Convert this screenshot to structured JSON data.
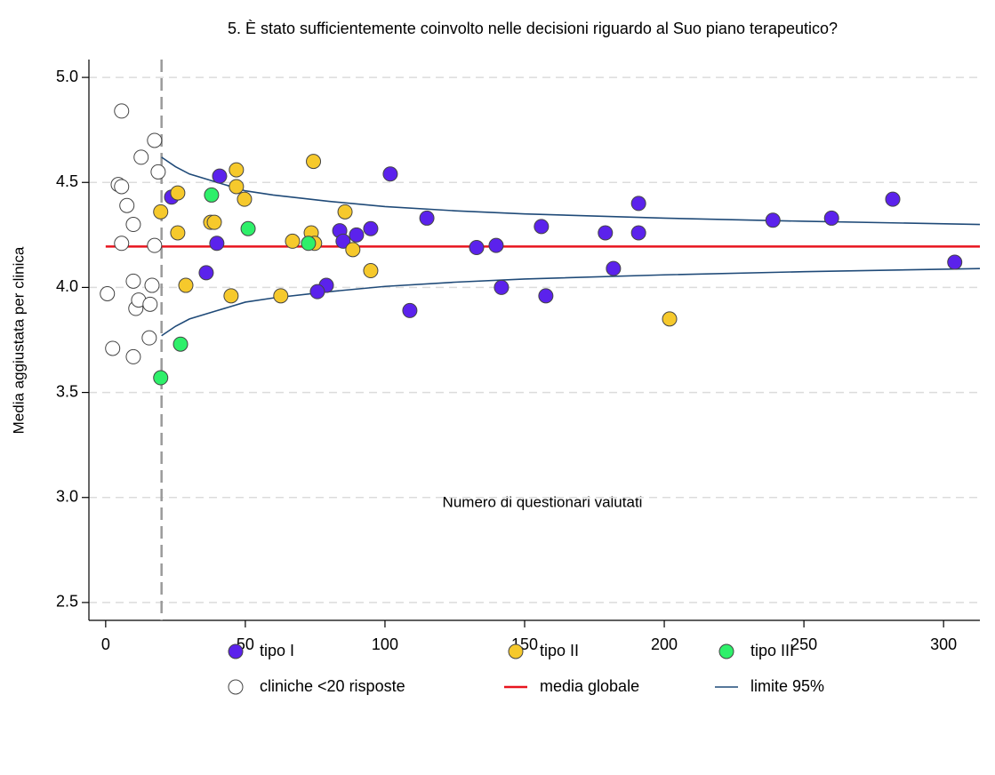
{
  "chart_data": {
    "type": "scatter",
    "title": "5. È stato sufficientemente coinvolto nelle decisioni riguardo al Suo piano terapeutico?",
    "x_label": "Numero di questionari valutati",
    "y_label": "Media aggiustata per clinica",
    "xlim": [
      -6,
      313
    ],
    "ylim": [
      2.415,
      5.085
    ],
    "xticks": [
      0,
      50,
      100,
      150,
      200,
      250,
      300
    ],
    "yticks": [
      2.5,
      {
        "value": 3,
        "label": "3.0"
      },
      3.5,
      {
        "value": 4,
        "label": "4.0"
      },
      4.5,
      {
        "value": 5,
        "label": "5.0"
      }
    ],
    "grid": true,
    "threshold_x": 20,
    "series": [
      {
        "name": "tipo I",
        "color": "#5b22ec",
        "x": [
          23.6,
          40.8,
          39.8,
          36,
          101.9,
          115,
          83.8,
          85,
          89.8,
          94.9,
          79,
          75.8,
          108.9,
          132.8,
          139.8,
          141.7,
          156,
          157.6,
          178.9,
          181.8,
          190.8,
          190.8,
          238.9,
          259.9,
          281.8,
          304
        ],
        "values": [
          4.43,
          4.53,
          4.21,
          4.07,
          4.54,
          4.33,
          4.27,
          4.22,
          4.25,
          4.28,
          4.01,
          3.98,
          3.89,
          4.19,
          4.2,
          4.0,
          4.29,
          3.96,
          4.26,
          4.09,
          4.4,
          4.26,
          4.32,
          4.33,
          4.42,
          4.12
        ]
      },
      {
        "name": "tipo II",
        "color": "#f6c92c",
        "x": [
          19.7,
          25.8,
          25.8,
          28.7,
          46.8,
          46.8,
          49.7,
          37.6,
          38.9,
          44.9,
          62.7,
          66.9,
          74.4,
          73.6,
          74.8,
          85.7,
          88.5,
          94.9,
          201.9
        ],
        "values": [
          4.36,
          4.45,
          4.26,
          4.01,
          4.56,
          4.48,
          4.42,
          4.31,
          4.31,
          3.96,
          3.96,
          4.22,
          4.6,
          4.26,
          4.21,
          4.36,
          4.18,
          4.08,
          3.85
        ]
      },
      {
        "name": "tipo III",
        "color": "#2ef06a",
        "x": [
          19.7,
          26.8,
          37.9,
          51,
          72.6
        ],
        "values": [
          3.57,
          3.73,
          4.44,
          4.28,
          4.21
        ]
      },
      {
        "name": "cliniche <20 risposte",
        "color": "#ffffff",
        "x": [
          0.6,
          2.5,
          5.7,
          4.5,
          5.7,
          7.6,
          9.9,
          5.7,
          9.9,
          10.8,
          11.8,
          9.9,
          12.7,
          17.5,
          18.8,
          17.5,
          16.6,
          15.9,
          15.6
        ],
        "values": [
          3.97,
          3.71,
          4.84,
          4.49,
          4.48,
          4.39,
          4.3,
          4.21,
          4.03,
          3.9,
          3.94,
          3.67,
          4.62,
          4.7,
          4.55,
          4.2,
          4.01,
          3.92,
          3.76
        ]
      },
      {
        "name": "media globale",
        "color": "#e8141e",
        "kind": "line",
        "x": [
          0,
          313
        ],
        "values": [
          4.195,
          4.195
        ]
      },
      {
        "name": "limite 95%",
        "color": "#1f4a78",
        "kind": "band",
        "x": [
          20,
          25,
          30,
          40,
          50,
          60,
          80,
          100,
          125,
          150,
          200,
          250,
          313
        ],
        "values": [
          4.62,
          4.575,
          4.54,
          4.5,
          4.46,
          4.44,
          4.41,
          4.385,
          4.365,
          4.35,
          4.33,
          4.315,
          4.3
        ],
        "lower": [
          3.77,
          3.815,
          3.85,
          3.89,
          3.93,
          3.95,
          3.98,
          4.005,
          4.025,
          4.04,
          4.06,
          4.075,
          4.09
        ]
      }
    ]
  }
}
